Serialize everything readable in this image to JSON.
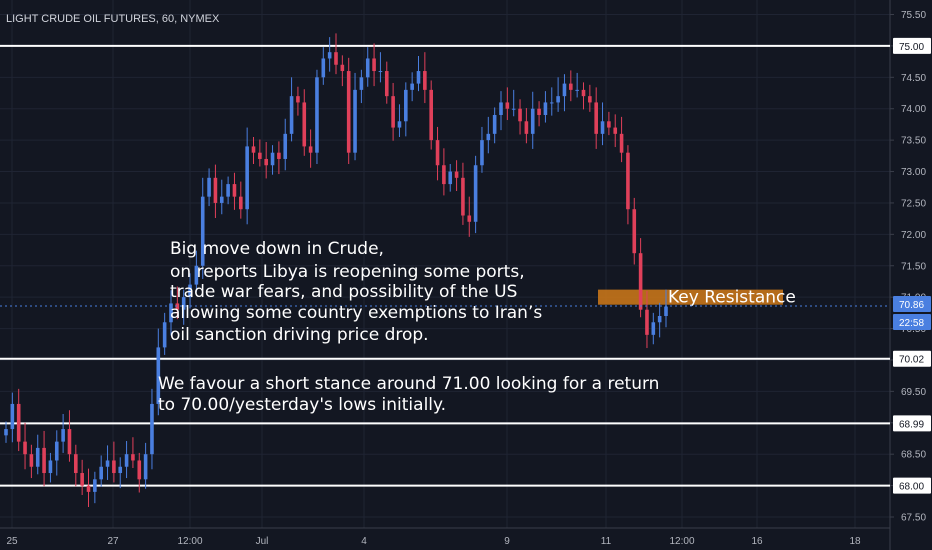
{
  "chart_data": {
    "type": "candlestick",
    "title": "LIGHT CRUDE OIL FUTURES, 60, NYMEX",
    "ylim": [
      67.3,
      75.7
    ],
    "y_ticks": [
      "75.50",
      "75.00",
      "74.50",
      "74.00",
      "73.50",
      "73.00",
      "72.50",
      "72.00",
      "71.50",
      "71.00",
      "70.50",
      "70.00",
      "69.50",
      "69.00",
      "68.50",
      "68.00",
      "67.50"
    ],
    "x_ticks": [
      "25",
      "27",
      "12:00",
      "Jul",
      "4",
      "9",
      "11",
      "12:00",
      "16",
      "18"
    ],
    "up_color": "#4a7fe0",
    "down_color": "#e0405a",
    "horizontal_levels": [
      {
        "value": 75.0,
        "label": "75.00"
      },
      {
        "value": 70.02,
        "label": "70.02"
      },
      {
        "value": 68.99,
        "label": "68.99"
      },
      {
        "value": 68.0,
        "label": "68.00"
      }
    ],
    "last_price": {
      "value": 70.86,
      "label": "70.86",
      "timer": "22:58"
    },
    "resistance_zone": {
      "low": 70.88,
      "high": 71.12,
      "label": "Key Resistance",
      "color": "#c7741a"
    },
    "series": [
      {
        "values": [
          68.9,
          69.3,
          68.7,
          68.5,
          68.3,
          68.6,
          68.2,
          68.4,
          68.7,
          68.9,
          68.5,
          68.2,
          68.0,
          67.9,
          68.1,
          68.3,
          68.4,
          68.2,
          68.3,
          68.5,
          68.4,
          68.1,
          68.5,
          69.3,
          70.2,
          70.6,
          70.9,
          70.8,
          71.0,
          71.2,
          71.5,
          72.6,
          72.9,
          72.5,
          72.6,
          72.8,
          72.6,
          72.4,
          73.4,
          73.3,
          73.2,
          73.1,
          73.3,
          73.2,
          73.6,
          74.2,
          74.1,
          73.4,
          73.3,
          74.5,
          74.8,
          74.9,
          74.7,
          74.6,
          73.3,
          74.3,
          74.5,
          74.8,
          74.6,
          74.6,
          74.2,
          73.7,
          73.8,
          74.3,
          74.4,
          74.6,
          74.3,
          73.5,
          73.1,
          72.8,
          73.0,
          72.9,
          72.3,
          72.2,
          73.1,
          73.5,
          73.6,
          73.9,
          74.1,
          74.0,
          74.0,
          73.8,
          73.6,
          74.0,
          73.9,
          74.1,
          74.1,
          74.2,
          74.4,
          74.3,
          74.3,
          74.2,
          74.1,
          73.6,
          73.8,
          73.7,
          73.6,
          73.3,
          72.4,
          71.7,
          70.8,
          70.4,
          70.6,
          70.7,
          70.85
        ]
      }
    ]
  }
}
